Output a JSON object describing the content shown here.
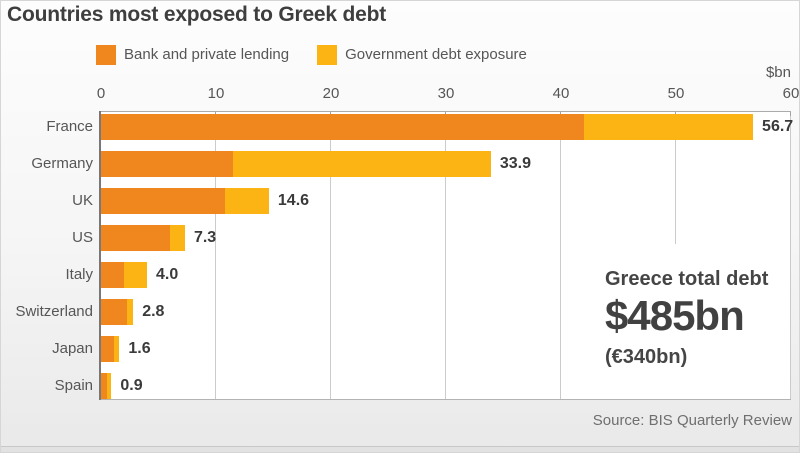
{
  "header": {
    "title": "Countries most exposed to Greek debt"
  },
  "legend": [
    {
      "label": "Bank and private lending",
      "color": "#F0871E"
    },
    {
      "label": "Government debt exposure",
      "color": "#FBB414"
    }
  ],
  "chart_data": {
    "type": "bar",
    "orientation": "horizontal",
    "stacked": true,
    "title": "Countries most exposed to Greek debt",
    "unit_label": "$bn",
    "axis": {
      "min": 0,
      "max": 60,
      "ticks": [
        0,
        10,
        20,
        30,
        40,
        50,
        60
      ],
      "position": "top",
      "grid": true,
      "short_gridline_tick": 50
    },
    "categories": [
      "France",
      "Germany",
      "UK",
      "US",
      "Italy",
      "Switzerland",
      "Japan",
      "Spain"
    ],
    "series": [
      {
        "name": "Bank and private lending",
        "color": "#F0871E",
        "values": [
          42.0,
          11.5,
          10.8,
          6.0,
          2.0,
          2.3,
          1.1,
          0.5
        ]
      },
      {
        "name": "Government debt exposure",
        "color": "#FBB414",
        "values": [
          14.7,
          22.4,
          3.8,
          1.3,
          2.0,
          0.5,
          0.5,
          0.4
        ]
      }
    ],
    "totals": [
      56.7,
      33.9,
      14.6,
      7.3,
      4.0,
      2.8,
      1.6,
      0.9
    ],
    "total_labels": [
      "56.7",
      "33.9",
      "14.6",
      "7.3",
      "4.0",
      "2.8",
      "1.6",
      "0.9"
    ],
    "legend_position": "top"
  },
  "annotation": {
    "heading": "Greece total debt",
    "value": "$485bn",
    "sub": "(€340bn)"
  },
  "footer": {
    "source": "Source: BIS Quarterly Review"
  },
  "colors": {
    "bank": "#F0871E",
    "government": "#FBB414",
    "grid": "#CBCBCB",
    "axis": "#ABABAB",
    "y_axis": "#787878",
    "title_text": "#3E3E3E",
    "label_text": "#565656",
    "value_text": "#3A3A3A",
    "source_text": "#6F6F6F"
  }
}
